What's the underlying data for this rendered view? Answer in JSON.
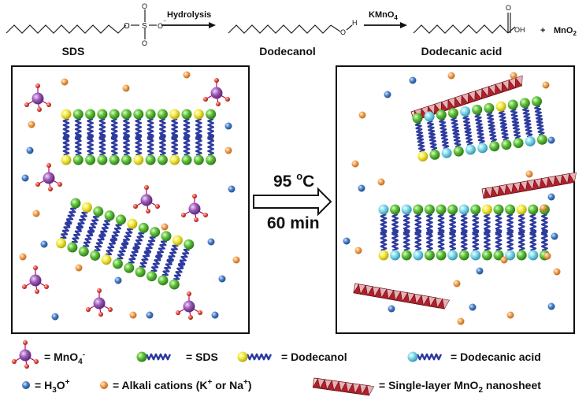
{
  "reaction": {
    "step1_label": "Hydrolysis",
    "step2_label": "KMnO",
    "step2_sub": "4",
    "sds_group": "O",
    "sds_s": "S",
    "sds_minus": "⁻",
    "dodecanol_group": "O",
    "dodecanol_h": "H",
    "acid_o": "O",
    "acid_oh": "OH",
    "plus": "+",
    "byproduct": "MnO",
    "byproduct_sub": "2",
    "names": [
      "SDS",
      "Dodecanol",
      "Dodecanic acid"
    ]
  },
  "condition": {
    "temperature": "95 ",
    "temp_sup": "o",
    "temp_unit": "C",
    "time": "60 min"
  },
  "legend": {
    "mno4": "= MnO",
    "mno4_sub": "4",
    "mno4_sup": "-",
    "sds": "= SDS",
    "dodecanol": "= Dodecanol",
    "acid": "= Dodecanic acid",
    "h3o_pre": "= H",
    "h3o_sub": "3",
    "h3o_post": "O",
    "h3o_sup": "+",
    "alkali_pre": "= Alkali cations (K",
    "alkali_sup1": "+",
    "alkali_mid": " or Na",
    "alkali_sup2": "+",
    "alkali_post": ")",
    "sheet_pre": "= Single-layer MnO",
    "sheet_sub": "2",
    "sheet_post": " nanosheet"
  },
  "colors": {
    "sds_head": "#5fbf3a",
    "dodecanol_head": "#f2ea3c",
    "acid_head": "#7fd8e8",
    "tail": "#2d3a9e",
    "mno4": "#9b59b6",
    "mno4_o": "#e74c3c",
    "h3o": "#4a7fc8",
    "alkali": "#f0a050",
    "sheet": "#b0202a"
  }
}
